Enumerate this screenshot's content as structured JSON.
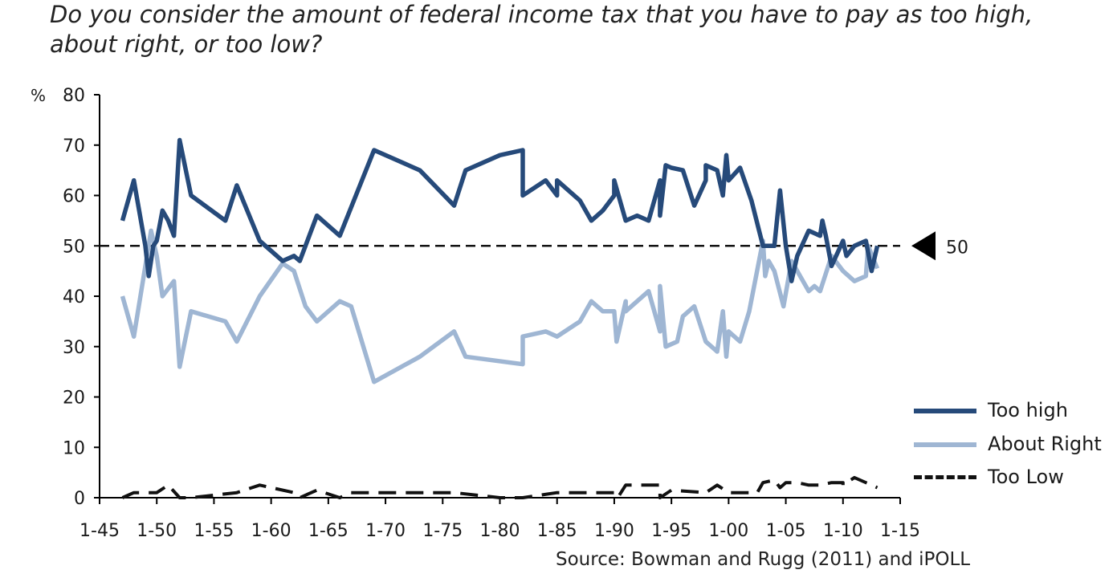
{
  "title": "Do you consider the amount of federal income tax that you have to pay as too high, about right, or too low?",
  "source": "Source: Bowman and Rugg (2011) and iPOLL",
  "colors": {
    "too_high": "#264a7a",
    "about_right": "#9fb6d3",
    "too_low": "#111111",
    "reference": "#111111"
  },
  "chart_data": {
    "type": "line",
    "ylabel": "%",
    "ylim": [
      0,
      80
    ],
    "yticks": [
      0,
      10,
      20,
      30,
      40,
      50,
      60,
      70,
      80
    ],
    "xlim": [
      1945,
      2015
    ],
    "xticks": [
      {
        "value": 1945,
        "label": "1-45"
      },
      {
        "value": 1950,
        "label": "1-50"
      },
      {
        "value": 1955,
        "label": "1-55"
      },
      {
        "value": 1960,
        "label": "1-60"
      },
      {
        "value": 1965,
        "label": "1-65"
      },
      {
        "value": 1970,
        "label": "1-70"
      },
      {
        "value": 1975,
        "label": "1-75"
      },
      {
        "value": 1980,
        "label": "1-80"
      },
      {
        "value": 1985,
        "label": "1-85"
      },
      {
        "value": 1990,
        "label": "1-90"
      },
      {
        "value": 1995,
        "label": "1-95"
      },
      {
        "value": 2000,
        "label": "1-00"
      },
      {
        "value": 2005,
        "label": "1-05"
      },
      {
        "value": 2010,
        "label": "1-10"
      },
      {
        "value": 2015,
        "label": "1-15"
      }
    ],
    "reference_line": {
      "value": 50,
      "label": "50",
      "style": "dashed"
    },
    "legend_position": "right",
    "series": [
      {
        "name": "Too high",
        "color_key": "too_high",
        "style": "solid",
        "points": [
          [
            1947,
            55
          ],
          [
            1948,
            63
          ],
          [
            1949,
            50
          ],
          [
            1949.3,
            44
          ],
          [
            1949.7,
            50
          ],
          [
            1950,
            51
          ],
          [
            1950.5,
            57
          ],
          [
            1951,
            55
          ],
          [
            1951.5,
            52
          ],
          [
            1952,
            71
          ],
          [
            1953,
            60
          ],
          [
            1956,
            55
          ],
          [
            1957,
            62
          ],
          [
            1959,
            51
          ],
          [
            1961,
            47
          ],
          [
            1962,
            48
          ],
          [
            1962.5,
            47
          ],
          [
            1964,
            56
          ],
          [
            1966,
            52
          ],
          [
            1969,
            69
          ],
          [
            1973,
            65
          ],
          [
            1976,
            58
          ],
          [
            1977,
            65
          ],
          [
            1980,
            68
          ],
          [
            1982,
            69
          ],
          [
            1982,
            60
          ],
          [
            1984,
            63
          ],
          [
            1985,
            60
          ],
          [
            1985,
            63
          ],
          [
            1987,
            59
          ],
          [
            1988,
            55
          ],
          [
            1989,
            57
          ],
          [
            1990,
            60
          ],
          [
            1990,
            63
          ],
          [
            1991,
            55
          ],
          [
            1992,
            56
          ],
          [
            1993,
            55
          ],
          [
            1994,
            63
          ],
          [
            1994,
            56
          ],
          [
            1994.5,
            66
          ],
          [
            1995,
            65.5
          ],
          [
            1996,
            65
          ],
          [
            1997,
            58
          ],
          [
            1998,
            63
          ],
          [
            1998,
            66
          ],
          [
            1999,
            65
          ],
          [
            1999.5,
            60
          ],
          [
            1999.8,
            68
          ],
          [
            2000,
            63
          ],
          [
            2001,
            65.5
          ],
          [
            2002,
            59
          ],
          [
            2003,
            50
          ],
          [
            2004,
            50
          ],
          [
            2004.5,
            61
          ],
          [
            2005,
            50
          ],
          [
            2005.5,
            43
          ],
          [
            2006,
            48
          ],
          [
            2007,
            53
          ],
          [
            2008,
            52
          ],
          [
            2008.2,
            55
          ],
          [
            2008.5,
            52
          ],
          [
            2009,
            46
          ],
          [
            2010,
            51
          ],
          [
            2010.3,
            48
          ],
          [
            2011,
            50
          ],
          [
            2012,
            51
          ],
          [
            2012.5,
            45
          ],
          [
            2013,
            50
          ]
        ]
      },
      {
        "name": "About Right",
        "color_key": "about_right",
        "style": "solid",
        "points": [
          [
            1947,
            40
          ],
          [
            1948,
            32
          ],
          [
            1949,
            46
          ],
          [
            1949.5,
            53
          ],
          [
            1950,
            48
          ],
          [
            1950.5,
            40
          ],
          [
            1951.5,
            43
          ],
          [
            1952,
            26
          ],
          [
            1953,
            37
          ],
          [
            1956,
            35
          ],
          [
            1957,
            31
          ],
          [
            1959,
            40
          ],
          [
            1961,
            46.5
          ],
          [
            1962,
            45
          ],
          [
            1963,
            38
          ],
          [
            1964,
            35
          ],
          [
            1966,
            39
          ],
          [
            1967,
            38
          ],
          [
            1969,
            23
          ],
          [
            1973,
            28
          ],
          [
            1976,
            33
          ],
          [
            1977,
            28
          ],
          [
            1982,
            26.5
          ],
          [
            1982,
            32
          ],
          [
            1984,
            33
          ],
          [
            1985,
            32
          ],
          [
            1987,
            35
          ],
          [
            1988,
            39
          ],
          [
            1989,
            37
          ],
          [
            1990,
            37
          ],
          [
            1990.2,
            31
          ],
          [
            1991,
            39
          ],
          [
            1991,
            37
          ],
          [
            1993,
            41
          ],
          [
            1994,
            33
          ],
          [
            1994,
            42
          ],
          [
            1994.5,
            30
          ],
          [
            1995.5,
            31
          ],
          [
            1996,
            36
          ],
          [
            1997,
            38
          ],
          [
            1998,
            31
          ],
          [
            1999,
            29
          ],
          [
            1999.5,
            37
          ],
          [
            1999.8,
            28
          ],
          [
            2000,
            33
          ],
          [
            2001,
            31
          ],
          [
            2001.8,
            37
          ],
          [
            2003,
            51
          ],
          [
            2003.2,
            44
          ],
          [
            2003.5,
            47
          ],
          [
            2004,
            45
          ],
          [
            2004.8,
            38
          ],
          [
            2005.5,
            47
          ],
          [
            2007,
            41
          ],
          [
            2007.5,
            42
          ],
          [
            2008,
            41
          ],
          [
            2009,
            48
          ],
          [
            2010,
            45
          ],
          [
            2011,
            43
          ],
          [
            2012,
            44
          ],
          [
            2012.2,
            50
          ],
          [
            2013,
            45.5
          ]
        ]
      },
      {
        "name": "Too Low",
        "color_key": "too_low",
        "style": "dashed",
        "points": [
          [
            1947,
            0
          ],
          [
            1948,
            1
          ],
          [
            1950,
            1
          ],
          [
            1951,
            2.5
          ],
          [
            1952,
            0
          ],
          [
            1953,
            0
          ],
          [
            1957,
            1
          ],
          [
            1959,
            2.5
          ],
          [
            1962,
            1
          ],
          [
            1962.5,
            0
          ],
          [
            1964,
            1.5
          ],
          [
            1966,
            0
          ],
          [
            1967,
            1
          ],
          [
            1976,
            1
          ],
          [
            1980,
            0
          ],
          [
            1982,
            0
          ],
          [
            1985,
            1
          ],
          [
            1990,
            1
          ],
          [
            1990.3,
            0
          ],
          [
            1991,
            2.5
          ],
          [
            1994,
            2.5
          ],
          [
            1994,
            0
          ],
          [
            1995,
            1.5
          ],
          [
            1998,
            1
          ],
          [
            1999,
            2.5
          ],
          [
            2000,
            1
          ],
          [
            2002.5,
            1
          ],
          [
            2003,
            3
          ],
          [
            2004,
            3.5
          ],
          [
            2004.5,
            2
          ],
          [
            2005,
            3
          ],
          [
            2006,
            3
          ],
          [
            2007,
            2.5
          ],
          [
            2008,
            2.5
          ],
          [
            2009,
            3
          ],
          [
            2010,
            3
          ],
          [
            2010,
            2.5
          ],
          [
            2011,
            4
          ],
          [
            2012,
            3
          ],
          [
            2013,
            2
          ]
        ]
      }
    ]
  }
}
